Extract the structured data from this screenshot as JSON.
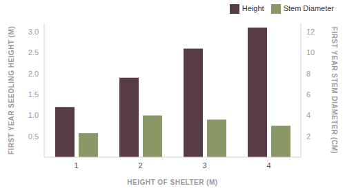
{
  "chart_data": {
    "type": "bar",
    "categories": [
      "1",
      "2",
      "3",
      "4"
    ],
    "x_label": "HEIGHT OF SHELTER (M)",
    "y_label": "FIRST YEAR SEEDLING HEIGHT (M)",
    "y2_label": "FIRST YEAR STEM DIAMETER (CM)",
    "ylim": [
      0,
      3.2
    ],
    "yticks": [
      0.5,
      {
        "value": 1,
        "label": "1.0"
      },
      1.5,
      {
        "value": 2,
        "label": "2.0"
      },
      2.5,
      {
        "value": 3,
        "label": "3.0"
      }
    ],
    "y2lim": [
      0,
      12.8
    ],
    "y2ticks": [
      2,
      4,
      6,
      8,
      10,
      12
    ],
    "series": [
      {
        "name": "Height",
        "color": "#573c47",
        "values": [
          1.2,
          1.9,
          2.6,
          3.1
        ]
      },
      {
        "name": "Stem Diameter",
        "color": "#8a9867",
        "values": [
          2.3,
          4.0,
          3.6,
          3.0
        ],
        "axis": "y2"
      }
    ],
    "legend": "upper right",
    "grid": false
  }
}
